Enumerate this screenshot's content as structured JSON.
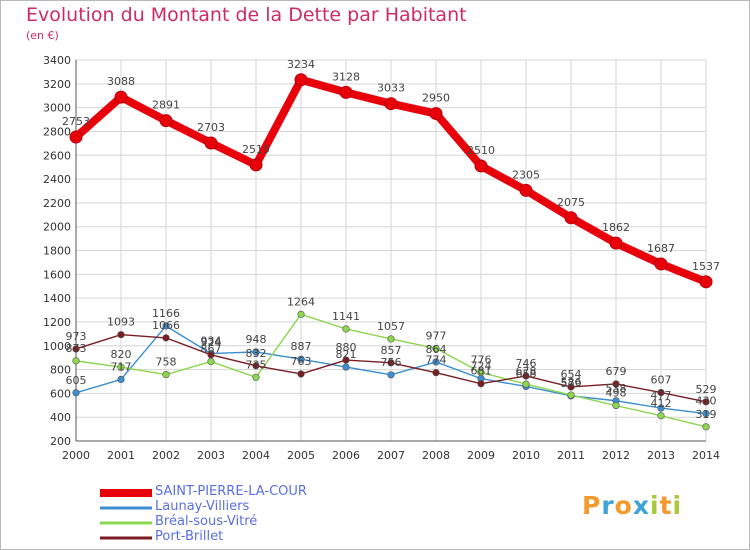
{
  "title": "Evolution du Montant de la Dette par Habitant",
  "subtitle": "(en €)",
  "logo": {
    "text": "Proxiti",
    "letters": [
      "P",
      "r",
      "o",
      "x",
      "i",
      "t",
      "i"
    ],
    "colors": [
      "#f29a2e",
      "#3ea3d9",
      "#f29a2e",
      "#3ea3d9",
      "#a8c93a",
      "#f29a2e",
      "#a8c93a"
    ]
  },
  "chart_data": {
    "type": "line",
    "title": "Evolution du Montant de la Dette par Habitant",
    "subtitle": "(en €)",
    "x": [
      2000,
      2001,
      2002,
      2003,
      2004,
      2005,
      2006,
      2007,
      2008,
      2009,
      2010,
      2011,
      2012,
      2013,
      2014
    ],
    "ylim": [
      200,
      3400
    ],
    "yticks": [
      200,
      400,
      600,
      800,
      1000,
      1200,
      1400,
      1600,
      1800,
      2000,
      2200,
      2400,
      2600,
      2800,
      3000,
      3200,
      3400
    ],
    "grid": true,
    "legend_position": "bottom-left",
    "series": [
      {
        "name": "SAINT-PIERRE-LA-COUR",
        "color": "#e8000b",
        "values": [
          2753,
          3088,
          2891,
          2703,
          2519,
          3234,
          3128,
          3033,
          2950,
          2510,
          2305,
          2075,
          1862,
          1687,
          1537
        ]
      },
      {
        "name": "Launay-Villiers",
        "color": "#3b8fd0",
        "values": [
          605,
          717,
          1166,
          934,
          948,
          887,
          821,
          756,
          864,
          724,
          658,
          579,
          538,
          477,
          430
        ]
      },
      {
        "name": "Bréal-sous-Vitré",
        "color": "#8dd64f",
        "values": [
          873,
          820,
          758,
          867,
          735,
          1264,
          1141,
          1057,
          977,
          776,
          678,
          586,
          498,
          412,
          319
        ]
      },
      {
        "name": "Port-Brillet",
        "color": "#7a1e23",
        "values": [
          973,
          1093,
          1066,
          924,
          832,
          763,
          880,
          857,
          774,
          681,
          746,
          654,
          679,
          607,
          529
        ]
      }
    ]
  }
}
